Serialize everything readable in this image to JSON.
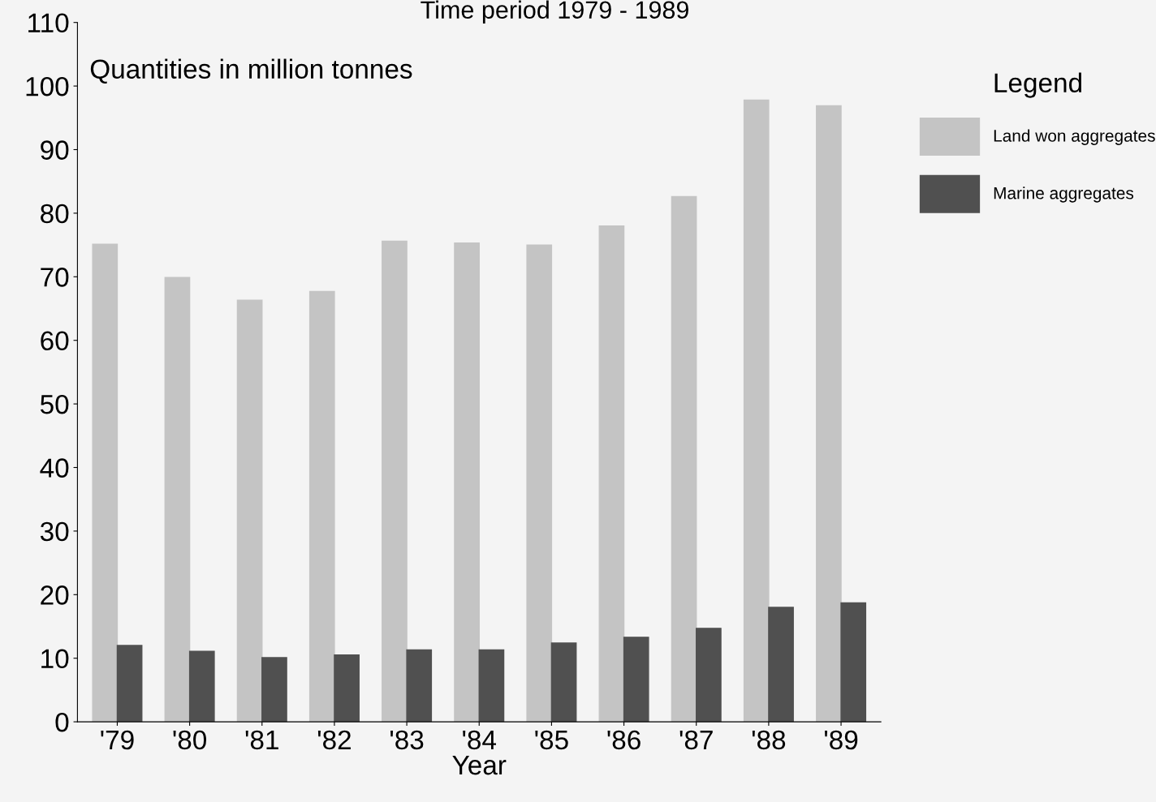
{
  "chart_data": {
    "type": "bar",
    "title": "Time period 1979 - 1989",
    "xlabel": "Year",
    "legend_title": "Legend",
    "annotations": [
      "Quantities in million tonnes"
    ],
    "categories": [
      "'79",
      "'80",
      "'81",
      "'82",
      "'83",
      "'84",
      "'85",
      "'86",
      "'87",
      "'88",
      "'89"
    ],
    "series": [
      {
        "name": "Land won aggregates",
        "color": "#c4c4c4",
        "values": [
          75.1,
          69.9,
          66.3,
          67.7,
          75.6,
          75.3,
          75.0,
          78.0,
          82.6,
          97.8,
          96.9
        ]
      },
      {
        "name": "Marine aggregates",
        "color": "#505050",
        "values": [
          12.0,
          11.1,
          10.1,
          10.5,
          11.3,
          11.3,
          12.4,
          13.3,
          14.7,
          18.0,
          18.7
        ]
      }
    ],
    "ylim": [
      0,
      110
    ],
    "yticks": [
      0,
      10,
      20,
      30,
      40,
      50,
      60,
      70,
      80,
      90,
      100,
      110
    ],
    "grid": false,
    "legend": "right"
  }
}
